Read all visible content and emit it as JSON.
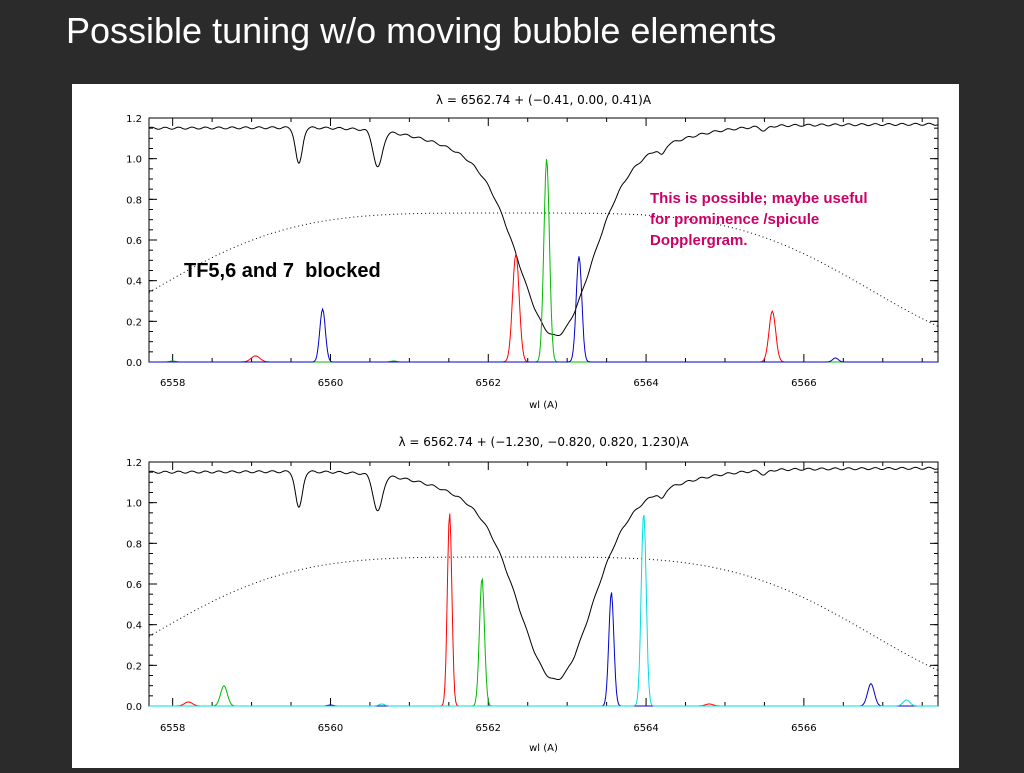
{
  "slide": {
    "title": "Possible tuning w/o moving bubble elements",
    "annotation_top": "This is possible; maybe useful\nfor prominence /spicule\nDopplergram.",
    "annotation_blocked": "TF5,6 and 7  blocked"
  },
  "chart_data": [
    {
      "type": "line",
      "title": "λ = 6562.74 + (−0.41,  0.00,  0.41)A",
      "xlabel": "wl (A)",
      "ylabel": "",
      "xlim": [
        6557.7,
        6567.7
      ],
      "ylim": [
        0,
        1.2
      ],
      "x_ticks": [
        6558,
        6560,
        6562,
        6564,
        6566
      ],
      "x_tick_labels": [
        "6558",
        "6560",
        "6562",
        "6564",
        "6566"
      ],
      "y_ticks": [
        0.0,
        0.2,
        0.4,
        0.6,
        0.8,
        1.0,
        1.2
      ],
      "y_tick_labels": [
        "0.0",
        "0.2",
        "0.4",
        "0.6",
        "0.8",
        "1.0",
        "1.2"
      ],
      "grid": false,
      "series": [
        {
          "kind": "spectrum",
          "color": "#000000",
          "style": "solid"
        },
        {
          "kind": "envelope",
          "color": "#000000",
          "style": "dotted"
        },
        {
          "kind": "peaks",
          "color": "#ff0000",
          "style": "solid",
          "peaks": [
            [
              6559.05,
              0.03,
              0.08
            ],
            [
              6562.35,
              0.53,
              0.06
            ],
            [
              6565.6,
              0.25,
              0.06
            ]
          ]
        },
        {
          "kind": "peaks",
          "color": "#00bb00",
          "style": "solid",
          "peaks": [
            [
              6562.74,
              1.0,
              0.05
            ],
            [
              6558.0,
              0.005,
              0.05
            ],
            [
              6560.8,
              0.005,
              0.05
            ]
          ]
        },
        {
          "kind": "peaks",
          "color": "#0000cc",
          "style": "solid",
          "peaks": [
            [
              6559.9,
              0.26,
              0.05
            ],
            [
              6563.15,
              0.52,
              0.05
            ],
            [
              6566.4,
              0.02,
              0.05
            ]
          ]
        }
      ]
    },
    {
      "type": "line",
      "title": "λ = 6562.74 + (−1.230, −0.820,  0.820,  1.230)A",
      "xlabel": "wl (A)",
      "ylabel": "",
      "xlim": [
        6557.7,
        6567.7
      ],
      "ylim": [
        0,
        1.2
      ],
      "x_ticks": [
        6558,
        6560,
        6562,
        6564,
        6566
      ],
      "x_tick_labels": [
        "6558",
        "6560",
        "6562",
        "6564",
        "6566"
      ],
      "y_ticks": [
        0.0,
        0.2,
        0.4,
        0.6,
        0.8,
        1.0,
        1.2
      ],
      "y_tick_labels": [
        "0.0",
        "0.2",
        "0.4",
        "0.6",
        "0.8",
        "1.0",
        "1.2"
      ],
      "grid": false,
      "series": [
        {
          "kind": "spectrum",
          "color": "#000000",
          "style": "solid"
        },
        {
          "kind": "envelope",
          "color": "#000000",
          "style": "dotted"
        },
        {
          "kind": "peaks",
          "color": "#ff0000",
          "style": "solid",
          "peaks": [
            [
              6561.51,
              0.95,
              0.04
            ],
            [
              6558.2,
              0.02,
              0.07
            ],
            [
              6564.8,
              0.01,
              0.07
            ]
          ]
        },
        {
          "kind": "peaks",
          "color": "#00bb00",
          "style": "solid",
          "peaks": [
            [
              6561.92,
              0.63,
              0.045
            ],
            [
              6558.65,
              0.1,
              0.06
            ]
          ]
        },
        {
          "kind": "peaks",
          "color": "#0000cc",
          "style": "solid",
          "peaks": [
            [
              6563.56,
              0.56,
              0.045
            ],
            [
              6566.85,
              0.11,
              0.06
            ],
            [
              6560.0,
              0.005,
              0.05
            ]
          ]
        },
        {
          "kind": "peaks",
          "color": "#00dddd",
          "style": "solid",
          "peaks": [
            [
              6563.97,
              0.95,
              0.045
            ],
            [
              6567.3,
              0.03,
              0.06
            ],
            [
              6560.65,
              0.01,
              0.05
            ]
          ]
        }
      ]
    }
  ]
}
